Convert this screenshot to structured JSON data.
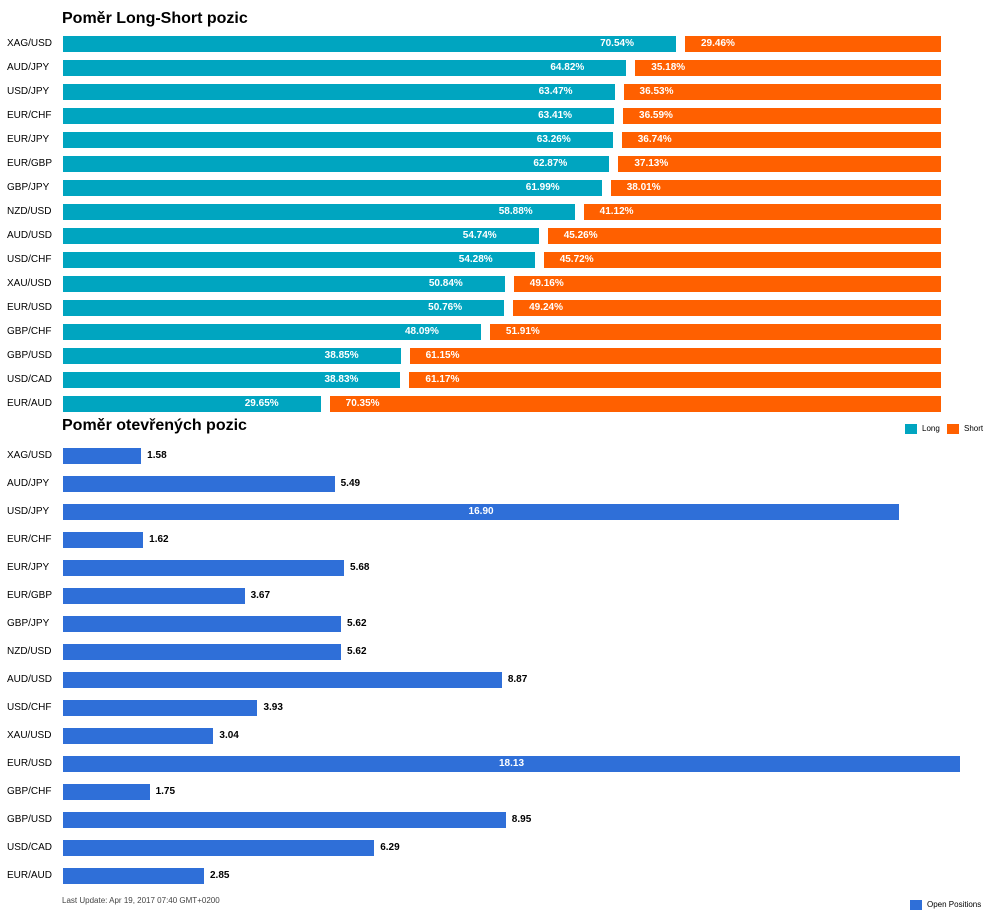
{
  "colors": {
    "long": "#00a5c0",
    "short": "#ff6000",
    "open_positions": "#2f6fd8"
  },
  "legend": {
    "long": "Long",
    "short": "Short",
    "open_positions": "Open Positions"
  },
  "footer": {
    "last_update": "Last Update: Apr 19, 2017 07:40 GMT+0200"
  },
  "chart_data": [
    {
      "type": "bar",
      "orientation": "horizontal-stacked",
      "title": "Poměr Long-Short pozic",
      "categories": [
        "XAG/USD",
        "AUD/JPY",
        "USD/JPY",
        "EUR/CHF",
        "EUR/JPY",
        "EUR/GBP",
        "GBP/JPY",
        "NZD/USD",
        "AUD/USD",
        "USD/CHF",
        "XAU/USD",
        "EUR/USD",
        "GBP/CHF",
        "GBP/USD",
        "USD/CAD",
        "EUR/AUD"
      ],
      "series": [
        {
          "name": "Long",
          "values": [
            70.54,
            64.82,
            63.47,
            63.41,
            63.26,
            62.87,
            61.99,
            58.88,
            54.74,
            54.28,
            50.84,
            50.76,
            48.09,
            38.85,
            38.83,
            29.65
          ],
          "labels": [
            "70.54%",
            "64.82%",
            "63.47%",
            "63.41%",
            "63.26%",
            "62.87%",
            "61.99%",
            "58.88%",
            "54.74%",
            "54.28%",
            "50.84%",
            "50.76%",
            "48.09%",
            "38.85%",
            "38.83%",
            "29.65%"
          ]
        },
        {
          "name": "Short",
          "values": [
            29.46,
            35.18,
            36.53,
            36.59,
            36.74,
            37.13,
            38.01,
            41.12,
            45.26,
            45.72,
            49.16,
            49.24,
            51.91,
            61.15,
            61.17,
            70.35
          ],
          "labels": [
            "29.46%",
            "35.18%",
            "36.53%",
            "36.59%",
            "36.74%",
            "37.13%",
            "38.01%",
            "41.12%",
            "45.26%",
            "45.72%",
            "49.16%",
            "49.24%",
            "51.91%",
            "61.15%",
            "61.17%",
            "70.35%"
          ]
        }
      ],
      "xlim": [
        0,
        100
      ],
      "legend_position": "bottom-right"
    },
    {
      "type": "bar",
      "orientation": "horizontal",
      "title": "Poměr otevřených pozic",
      "categories": [
        "XAG/USD",
        "AUD/JPY",
        "USD/JPY",
        "EUR/CHF",
        "EUR/JPY",
        "EUR/GBP",
        "GBP/JPY",
        "NZD/USD",
        "AUD/USD",
        "USD/CHF",
        "XAU/USD",
        "EUR/USD",
        "GBP/CHF",
        "GBP/USD",
        "USD/CAD",
        "EUR/AUD"
      ],
      "series": [
        {
          "name": "Open Positions",
          "values": [
            1.58,
            5.49,
            16.9,
            1.62,
            5.68,
            3.67,
            5.62,
            5.62,
            8.87,
            3.93,
            3.04,
            18.13,
            1.75,
            8.95,
            6.29,
            2.85
          ],
          "labels": [
            "1.58",
            "5.49",
            "16.90",
            "1.62",
            "5.68",
            "3.67",
            "5.62",
            "5.62",
            "8.87",
            "3.93",
            "3.04",
            "18.13",
            "1.75",
            "8.95",
            "6.29",
            "2.85"
          ]
        }
      ],
      "xlim": [
        0,
        18.13
      ],
      "legend_position": "bottom-right"
    }
  ]
}
